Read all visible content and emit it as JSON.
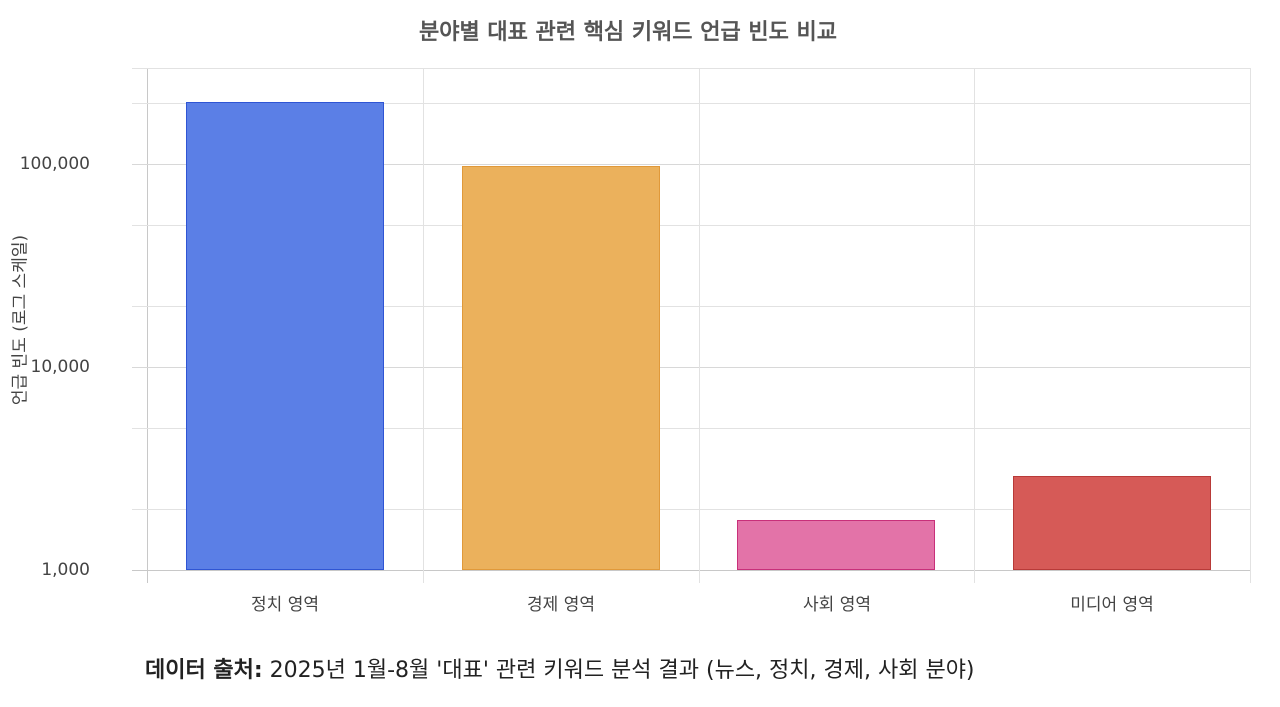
{
  "chart_data": {
    "type": "bar",
    "title": "분야별 대표 관련 핵심 키워드 언급 빈도 비교",
    "xlabel": "",
    "ylabel": "언급 빈도 (로그 스케일)",
    "yscale": "log",
    "ylim": [
      1000,
      300000
    ],
    "yticks": [
      "1,000",
      "10,000",
      "100,000"
    ],
    "grid": true,
    "legend": "none",
    "categories": [
      "정치 영역",
      "경제 영역",
      "사회 영역",
      "미디어 영역"
    ],
    "values": [
      202000,
      98000,
      1760,
      2900
    ],
    "colors": [
      "#5b7fe6",
      "#ebb15c",
      "#e373a8",
      "#d65a57"
    ],
    "border_colors": [
      "#2f55d4",
      "#e0993a",
      "#c8307a",
      "#b83a38"
    ]
  },
  "footer": {
    "label": "데이터 출처:",
    "text": " 2025년 1월-8월 '대표' 관련 키워드 분석 결과 (뉴스, 정치, 경제, 사회 분야)"
  }
}
